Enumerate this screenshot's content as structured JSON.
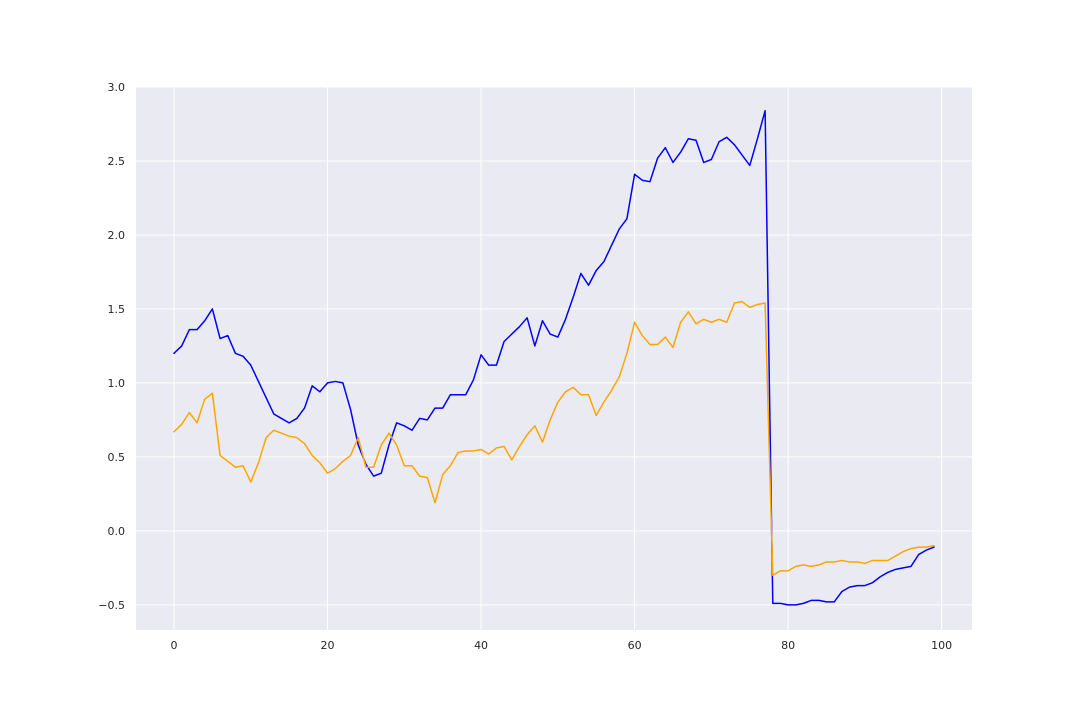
{
  "chart_data": {
    "type": "line",
    "title": "",
    "xlabel": "",
    "ylabel": "",
    "xlim": [
      -4.95,
      103.95
    ],
    "ylim": [
      -0.67,
      3.0
    ],
    "x_ticks": [
      0,
      20,
      40,
      60,
      80,
      100
    ],
    "x_tick_labels": [
      "0",
      "20",
      "40",
      "60",
      "80",
      "100"
    ],
    "y_ticks": [
      -0.5,
      0.0,
      0.5,
      1.0,
      1.5,
      2.0,
      2.5,
      3.0
    ],
    "y_tick_labels": [
      "−0.5",
      "0.0",
      "0.5",
      "1.0",
      "1.5",
      "2.0",
      "2.5",
      "3.0"
    ],
    "grid": true,
    "background": "#EAEAF2",
    "x": [
      0,
      1,
      2,
      3,
      4,
      5,
      6,
      7,
      8,
      9,
      10,
      11,
      12,
      13,
      14,
      15,
      16,
      17,
      18,
      19,
      20,
      21,
      22,
      23,
      24,
      25,
      26,
      27,
      28,
      29,
      30,
      31,
      32,
      33,
      34,
      35,
      36,
      37,
      38,
      39,
      40,
      41,
      42,
      43,
      44,
      45,
      46,
      47,
      48,
      49,
      50,
      51,
      52,
      53,
      54,
      55,
      56,
      57,
      58,
      59,
      60,
      61,
      62,
      63,
      64,
      65,
      66,
      67,
      68,
      69,
      70,
      71,
      72,
      73,
      74,
      75,
      76,
      77,
      78,
      79,
      80,
      81,
      82,
      83,
      84,
      85,
      86,
      87,
      88,
      89,
      90,
      91,
      92,
      93,
      94,
      95,
      96,
      97,
      98,
      99
    ],
    "series": [
      {
        "color": "#0000FF",
        "values": [
          1.2,
          1.25,
          1.36,
          1.36,
          1.42,
          1.5,
          1.3,
          1.32,
          1.2,
          1.18,
          1.12,
          1.01,
          0.9,
          0.79,
          0.76,
          0.73,
          0.76,
          0.83,
          0.98,
          0.94,
          1.0,
          1.01,
          1.0,
          0.82,
          0.58,
          0.45,
          0.37,
          0.39,
          0.58,
          0.73,
          0.71,
          0.68,
          0.76,
          0.75,
          0.83,
          0.83,
          0.92,
          0.92,
          0.92,
          1.02,
          1.19,
          1.12,
          1.12,
          1.28,
          1.33,
          1.38,
          1.44,
          1.25,
          1.42,
          1.33,
          1.31,
          1.43,
          1.58,
          1.74,
          1.66,
          1.76,
          1.82,
          1.93,
          2.04,
          2.11,
          2.41,
          2.37,
          2.36,
          2.52,
          2.59,
          2.49,
          2.56,
          2.65,
          2.64,
          2.49,
          2.51,
          2.63,
          2.66,
          2.61,
          2.54,
          2.47,
          2.65,
          2.84,
          -0.49,
          -0.49,
          -0.5,
          -0.5,
          -0.49,
          -0.47,
          -0.47,
          -0.48,
          -0.48,
          -0.41,
          -0.38,
          -0.37,
          -0.37,
          -0.35,
          -0.31,
          -0.28,
          -0.26,
          -0.25,
          -0.24,
          -0.16,
          -0.13,
          -0.11
        ]
      },
      {
        "color": "#FFA500",
        "values": [
          0.67,
          0.72,
          0.8,
          0.73,
          0.89,
          0.93,
          0.51,
          0.47,
          0.43,
          0.44,
          0.33,
          0.46,
          0.63,
          0.68,
          0.66,
          0.64,
          0.63,
          0.59,
          0.51,
          0.46,
          0.39,
          0.42,
          0.47,
          0.51,
          0.63,
          0.43,
          0.43,
          0.58,
          0.66,
          0.58,
          0.44,
          0.44,
          0.37,
          0.36,
          0.19,
          0.38,
          0.44,
          0.53,
          0.54,
          0.54,
          0.55,
          0.52,
          0.56,
          0.57,
          0.48,
          0.57,
          0.65,
          0.71,
          0.6,
          0.75,
          0.87,
          0.94,
          0.97,
          0.92,
          0.92,
          0.78,
          0.87,
          0.95,
          1.04,
          1.2,
          1.41,
          1.32,
          1.26,
          1.26,
          1.31,
          1.24,
          1.41,
          1.48,
          1.4,
          1.43,
          1.41,
          1.43,
          1.41,
          1.54,
          1.55,
          1.51,
          1.53,
          1.54,
          -0.3,
          -0.27,
          -0.27,
          -0.24,
          -0.23,
          -0.24,
          -0.23,
          -0.21,
          -0.21,
          -0.2,
          -0.21,
          -0.21,
          -0.22,
          -0.2,
          -0.2,
          -0.2,
          -0.17,
          -0.14,
          -0.12,
          -0.11,
          -0.11,
          -0.1
        ]
      }
    ]
  }
}
